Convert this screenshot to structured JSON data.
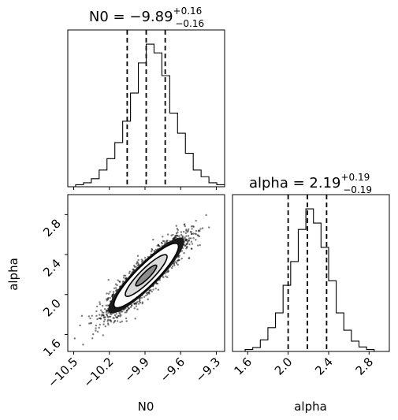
{
  "chart_data": {
    "type": "corner",
    "parameters": [
      "N0",
      "alpha"
    ],
    "panels": [
      {
        "panel": "N0-histogram",
        "type": "histogram",
        "title": {
          "prefix": "N0 = ",
          "value": "−9.89",
          "sup": "+0.16",
          "sub": "−0.16"
        },
        "x_range": [
          -10.55,
          -9.23
        ],
        "bins": {
          "edges_start": -10.55,
          "bin_width": 0.066,
          "counts": [
            0,
            3,
            6,
            12,
            25,
            42,
            66,
            98,
            140,
            185,
            213,
            200,
            166,
            110,
            80,
            50,
            25,
            15,
            6,
            3
          ]
        },
        "quantile_lines": [
          -10.05,
          -9.89,
          -9.73
        ],
        "xtick_labels_shown": false
      },
      {
        "panel": "alpha-histogram",
        "type": "histogram",
        "title": {
          "prefix": "alpha = ",
          "value": "2.19",
          "sup": "+0.19",
          "sub": "−0.19"
        },
        "x_range": [
          1.45,
          3.0
        ],
        "bins": {
          "edges_start": 1.5,
          "bin_width": 0.075,
          "counts": [
            0,
            3,
            6,
            18,
            37,
            60,
            103,
            140,
            190,
            222,
            200,
            162,
            110,
            60,
            33,
            16,
            7,
            3,
            0
          ]
        },
        "quantile_lines": [
          2.0,
          2.19,
          2.38
        ],
        "xticks": [
          "1.6",
          "2.0",
          "2.4",
          "2.8"
        ],
        "xlabel": "alpha"
      },
      {
        "panel": "N0-alpha-2d",
        "type": "scatter-contour",
        "x_range": [
          -10.55,
          -9.23
        ],
        "y_range": [
          1.43,
          3.0
        ],
        "xticks": [
          "−10.5",
          "−10.2",
          "−9.9",
          "−9.6",
          "−9.3"
        ],
        "yticks": [
          "1.6",
          "2.0",
          "2.4",
          "2.8"
        ],
        "xlabel": "N0",
        "ylabel": "alpha",
        "mean": [
          -9.89,
          2.19
        ],
        "std": [
          0.16,
          0.19
        ],
        "correlation": 0.9
      }
    ],
    "colors": {
      "line": "#000000",
      "points": "#111111",
      "background": "#ffffff"
    }
  }
}
